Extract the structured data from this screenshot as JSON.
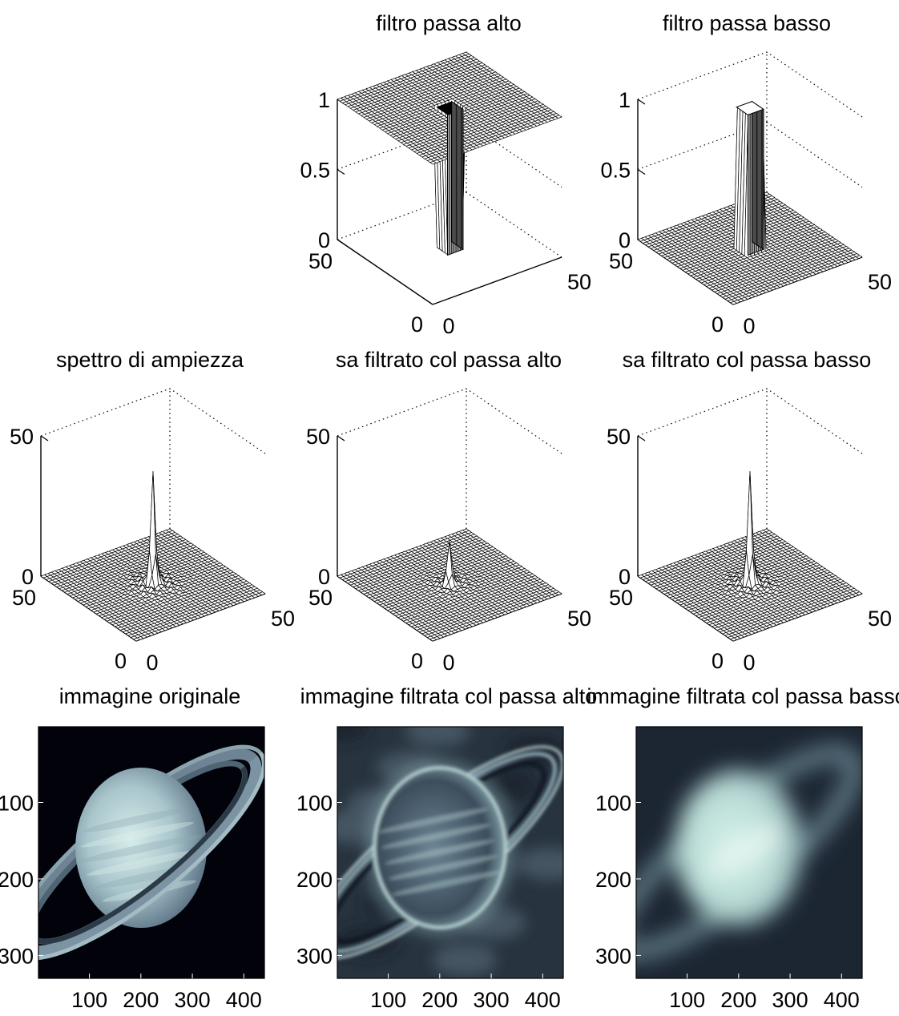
{
  "chart_data": [
    {
      "type": "surface",
      "title": "filtro passa alto",
      "zlim": [
        0,
        1
      ],
      "z_ticks": [
        "0",
        "0.5",
        "1"
      ],
      "x_ticks": [
        "0",
        "50"
      ],
      "y_ticks": [
        "0",
        "50"
      ],
      "grid_size": 50,
      "shape": "high-pass: plane at 1 with square notch at 0 in center",
      "high_value": 1,
      "low_value": 0,
      "notch_center": [
        25,
        25
      ],
      "notch_halfwidth": 3
    },
    {
      "type": "surface",
      "title": "filtro passa basso",
      "zlim": [
        0,
        1
      ],
      "z_ticks": [
        "0",
        "0.5",
        "1"
      ],
      "x_ticks": [
        "0",
        "50"
      ],
      "y_ticks": [
        "0",
        "50"
      ],
      "grid_size": 50,
      "shape": "low-pass: plane at 0 with square pillar at 1 in center",
      "high_value": 1,
      "low_value": 0,
      "notch_center": [
        25,
        25
      ],
      "notch_halfwidth": 3
    },
    {
      "type": "surface",
      "title": "spettro di ampiezza",
      "zlim": [
        0,
        50
      ],
      "z_ticks": [
        "0",
        "50"
      ],
      "x_ticks": [
        "0",
        "50"
      ],
      "y_ticks": [
        "0",
        "50"
      ],
      "grid_size": 50,
      "peak_value": 40
    },
    {
      "type": "surface",
      "title": "sa filtrato col passa alto",
      "zlim": [
        0,
        50
      ],
      "z_ticks": [
        "0",
        "50"
      ],
      "x_ticks": [
        "0",
        "50"
      ],
      "y_ticks": [
        "0",
        "50"
      ],
      "grid_size": 50,
      "peak_value": 18
    },
    {
      "type": "surface",
      "title": "sa filtrato col passa basso",
      "zlim": [
        0,
        50
      ],
      "z_ticks": [
        "0",
        "50"
      ],
      "x_ticks": [
        "0",
        "50"
      ],
      "y_ticks": [
        "0",
        "50"
      ],
      "grid_size": 50,
      "peak_value": 40
    },
    {
      "type": "image",
      "title": "immagine originale",
      "x_ticks": [
        "100",
        "200",
        "300",
        "400"
      ],
      "y_ticks": [
        "100",
        "200",
        "300"
      ],
      "xlim": [
        1,
        440
      ],
      "ylim": [
        1,
        330
      ],
      "colormap": "bone"
    },
    {
      "type": "image",
      "title": "immagine filtrata col passa alto",
      "x_ticks": [
        "100",
        "200",
        "300",
        "400"
      ],
      "y_ticks": [
        "100",
        "200",
        "300"
      ],
      "xlim": [
        1,
        440
      ],
      "ylim": [
        1,
        330
      ],
      "colormap": "bone"
    },
    {
      "type": "image",
      "title": "immagine filtrata col passa basso",
      "x_ticks": [
        "100",
        "200",
        "300",
        "400"
      ],
      "y_ticks": [
        "100",
        "200",
        "300"
      ],
      "xlim": [
        1,
        440
      ],
      "ylim": [
        1,
        330
      ],
      "colormap": "bone"
    }
  ],
  "colors": {
    "mesh_face": "#ffffff",
    "mesh_edge": "#000000",
    "image_dark": "#000008",
    "image_light": "#c6e6e2"
  }
}
